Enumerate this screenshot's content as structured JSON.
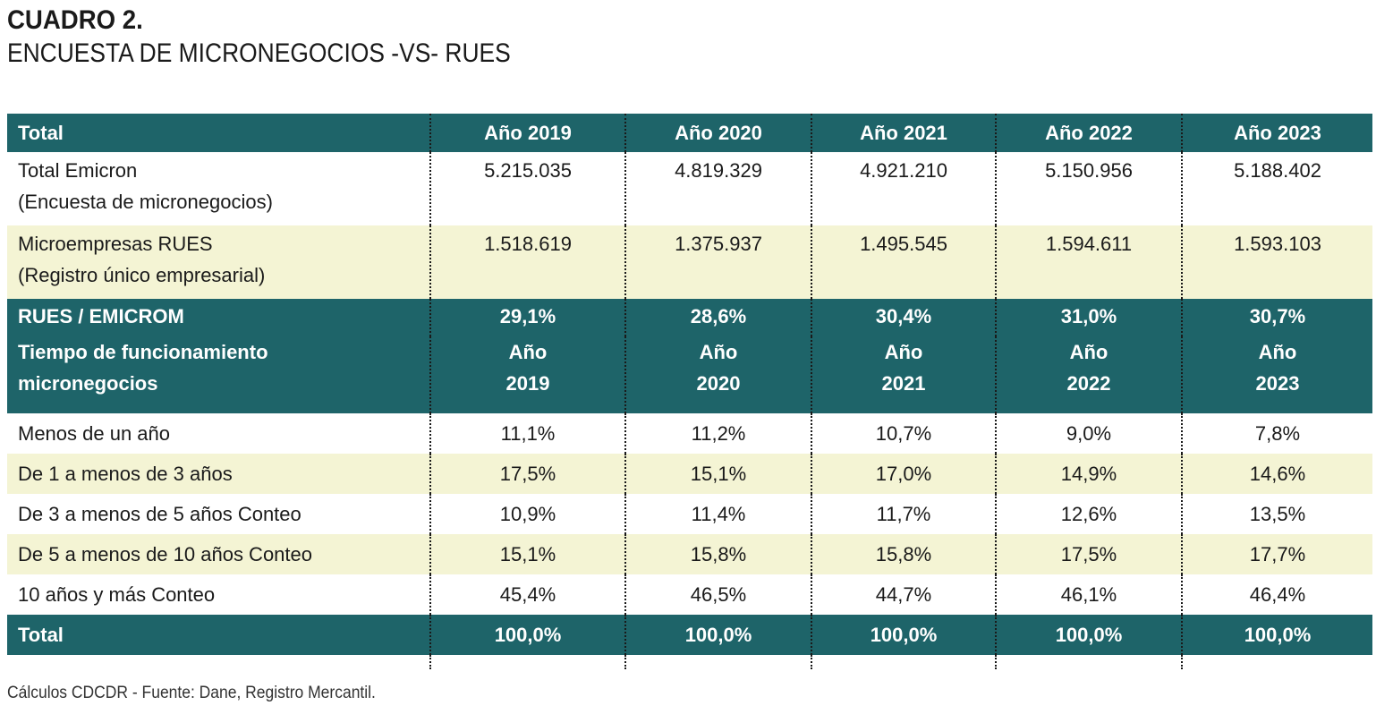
{
  "title": "CUADRO 2.",
  "subtitle": "ENCUESTA DE MICRONEGOCIOS -VS- RUES",
  "header": {
    "label": "Total",
    "years": [
      "Año 2019",
      "Año 2020",
      "Año 2021",
      "Año 2022",
      "Año 2023"
    ]
  },
  "emicron": {
    "label_line1": "Total Emicron",
    "label_line2": "(Encuesta de micronegocios)",
    "values": [
      "5.215.035",
      "4.819.329",
      "4.921.210",
      "5.150.956",
      "5.188.402"
    ]
  },
  "rues": {
    "label_line1": "Microempresas RUES",
    "label_line2": "(Registro único empresarial)",
    "values": [
      "1.518.619",
      "1.375.937",
      "1.495.545",
      "1.594.611",
      "1.593.103"
    ]
  },
  "ratio": {
    "label": "RUES / EMICROM",
    "values": [
      "29,1%",
      "28,6%",
      "30,4%",
      "31,0%",
      "30,7%"
    ]
  },
  "tiempo": {
    "label_line1": "Tiempo de funcionamiento",
    "label_line2": "micronegocios",
    "year_word": [
      "Año",
      "Año",
      "Año",
      "Año",
      "Año"
    ],
    "years": [
      "2019",
      "2020",
      "2021",
      "2022",
      "2023"
    ]
  },
  "rows": [
    {
      "label": "Menos de un año",
      "values": [
        "11,1%",
        "11,2%",
        "10,7%",
        "9,0%",
        "7,8%"
      ]
    },
    {
      "label": "De 1 a menos de 3 años",
      "values": [
        "17,5%",
        "15,1%",
        "17,0%",
        "14,9%",
        "14,6%"
      ]
    },
    {
      "label": "De 3 a menos de 5 años Conteo",
      "values": [
        "10,9%",
        "11,4%",
        "11,7%",
        "12,6%",
        "13,5%"
      ]
    },
    {
      "label": "De 5 a menos de 10 años Conteo",
      "values": [
        "15,1%",
        "15,8%",
        "15,8%",
        "17,5%",
        "17,7%"
      ]
    },
    {
      "label": "10 años y más Conteo",
      "values": [
        "45,4%",
        "46,5%",
        "44,7%",
        "46,1%",
        "46,4%"
      ]
    }
  ],
  "total": {
    "label": "Total",
    "values": [
      "100,0%",
      "100,0%",
      "100,0%",
      "100,0%",
      "100,0%"
    ]
  },
  "source": "Cálculos CDCDR - Fuente: Dane, Registro Mercantil.",
  "colors": {
    "header_bg": "#1e6469",
    "alt_row_bg": "#f4f4d4"
  }
}
